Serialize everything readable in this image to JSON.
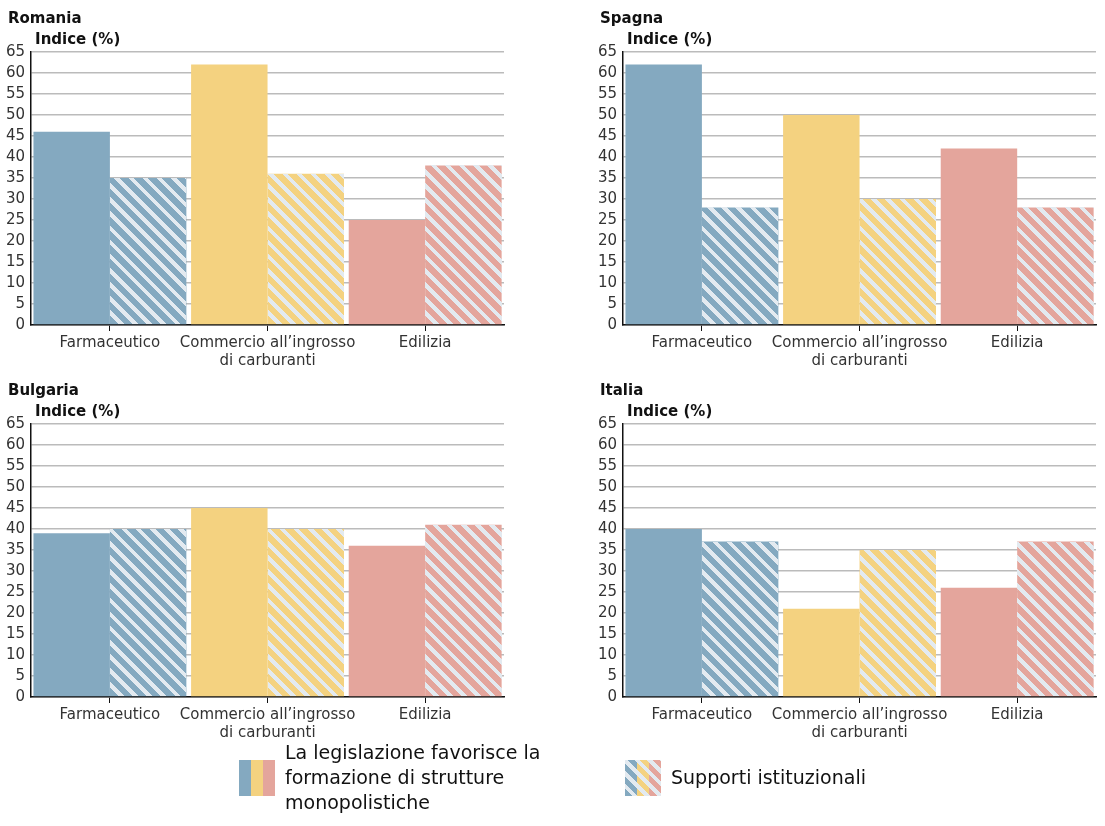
{
  "chart_data": [
    {
      "type": "bar",
      "title": "Romania",
      "ylabel": "Indice (%)",
      "categories": [
        "Farmaceutico",
        "Commercio all’ingrosso di carburanti",
        "Edilizia"
      ],
      "series": [
        {
          "colors": [
            "#84a9c0",
            "#f4d280",
            "#e4a59c"
          ],
          "values": [
            46,
            62,
            25
          ]
        },
        {
          "colors": [
            "#84a9c0",
            "#f4d280",
            "#e4a59c"
          ],
          "values": [
            35,
            36,
            38
          ]
        }
      ],
      "ylim": [
        0,
        65
      ],
      "yticks": [
        0,
        5,
        10,
        15,
        20,
        25,
        30,
        35,
        40,
        45,
        50,
        55,
        60,
        65
      ],
      "grid": "y"
    },
    {
      "type": "bar",
      "title": "Spagna",
      "ylabel": "Indice (%)",
      "categories": [
        "Farmaceutico",
        "Commercio all’ingrosso di carburanti",
        "Edilizia"
      ],
      "series": [
        {
          "colors": [
            "#84a9c0",
            "#f4d280",
            "#e4a59c"
          ],
          "values": [
            62,
            50,
            42
          ]
        },
        {
          "colors": [
            "#84a9c0",
            "#f4d280",
            "#e4a59c"
          ],
          "values": [
            28,
            30,
            28
          ]
        }
      ],
      "ylim": [
        0,
        65
      ],
      "yticks": [
        0,
        5,
        10,
        15,
        20,
        25,
        30,
        35,
        40,
        45,
        50,
        55,
        60,
        65
      ],
      "grid": "y"
    },
    {
      "type": "bar",
      "title": "Bulgaria",
      "ylabel": "Indice (%)",
      "categories": [
        "Farmaceutico",
        "Commercio all’ingrosso di carburanti",
        "Edilizia"
      ],
      "series": [
        {
          "colors": [
            "#84a9c0",
            "#f4d280",
            "#e4a59c"
          ],
          "values": [
            39,
            45,
            36
          ]
        },
        {
          "colors": [
            "#84a9c0",
            "#f4d280",
            "#e4a59c"
          ],
          "values": [
            40,
            40,
            41
          ]
        }
      ],
      "ylim": [
        0,
        65
      ],
      "yticks": [
        0,
        5,
        10,
        15,
        20,
        25,
        30,
        35,
        40,
        45,
        50,
        55,
        60,
        65
      ],
      "grid": "y"
    },
    {
      "type": "bar",
      "title": "Italia",
      "ylabel": "Indice (%)",
      "categories": [
        "Farmaceutico",
        "Commercio all’ingrosso di carburanti",
        "Edilizia"
      ],
      "series": [
        {
          "name": "La legislazione favorisce la formazione di strutture monopolistiche",
          "colors": [
            "#84a9c0",
            "#f4d280",
            "#e4a59c"
          ],
          "values": [
            40,
            21,
            26
          ]
        },
        {
          "name": "Supporti istituzionali",
          "colors": [
            "#84a9c0",
            "#f4d280",
            "#e4a59c"
          ],
          "values": [
            37,
            35,
            37
          ]
        }
      ],
      "ylim": [
        0,
        65
      ],
      "yticks": [
        0,
        5,
        10,
        15,
        20,
        25,
        30,
        35,
        40,
        45,
        50,
        55,
        60,
        65
      ],
      "grid": "y",
      "legend": "bottom"
    }
  ]
}
